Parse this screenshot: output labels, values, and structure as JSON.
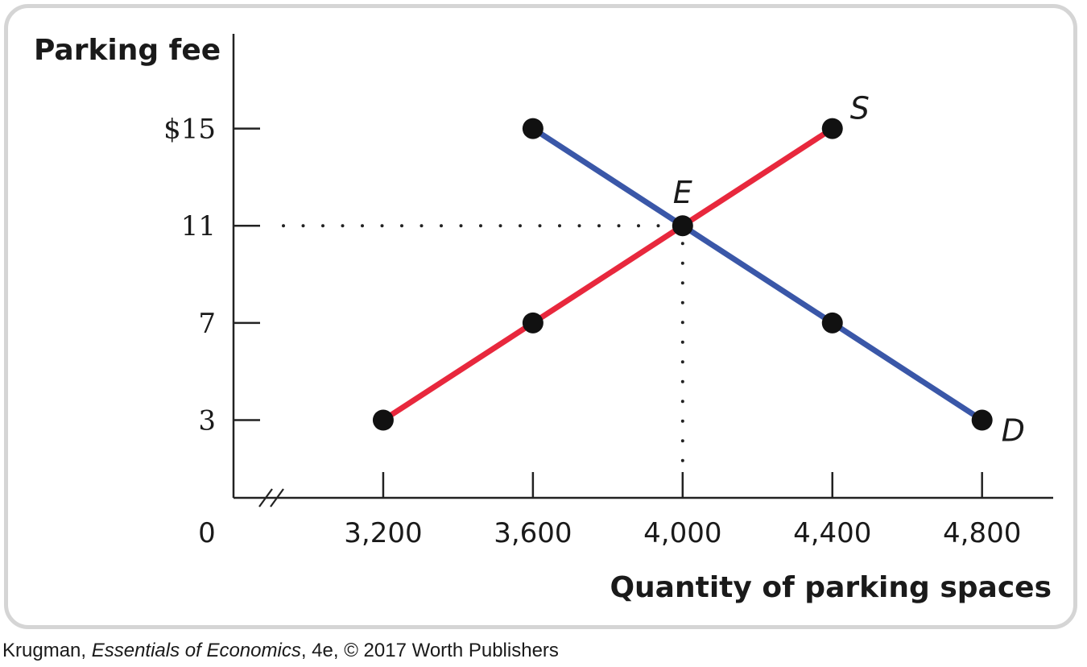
{
  "chart_data": {
    "type": "line",
    "ylabel": "Parking fee",
    "xlabel": "Quantity of parking spaces",
    "origin_label": "0",
    "x_ticks": [
      {
        "value": 3200,
        "label": "3,200"
      },
      {
        "value": 3600,
        "label": "3,600"
      },
      {
        "value": 4000,
        "label": "4,000"
      },
      {
        "value": 4400,
        "label": "4,400"
      },
      {
        "value": 4800,
        "label": "4,800"
      }
    ],
    "y_ticks": [
      {
        "value": 3,
        "label": "3"
      },
      {
        "value": 7,
        "label": "7"
      },
      {
        "value": 11,
        "label": "11"
      },
      {
        "value": 15,
        "label": "$15"
      }
    ],
    "xlim": [
      2800,
      4990
    ],
    "ylim": [
      -0.2,
      18.9
    ],
    "x_axis_break": true,
    "series": [
      {
        "name": "S",
        "color": "#e8283d",
        "points": [
          {
            "x": 3200,
            "y": 3
          },
          {
            "x": 3600,
            "y": 7
          },
          {
            "x": 4000,
            "y": 11
          },
          {
            "x": 4400,
            "y": 15
          }
        ]
      },
      {
        "name": "D",
        "color": "#3a57a8",
        "points": [
          {
            "x": 3600,
            "y": 15
          },
          {
            "x": 4000,
            "y": 11
          },
          {
            "x": 4400,
            "y": 7
          },
          {
            "x": 4800,
            "y": 3
          }
        ]
      }
    ],
    "equilibrium": {
      "label": "E",
      "x": 4000,
      "y": 11
    }
  },
  "credit": {
    "author": "Krugman, ",
    "title": "Essentials of Economics",
    "rest": ", 4e, © 2017 Worth Publishers"
  }
}
